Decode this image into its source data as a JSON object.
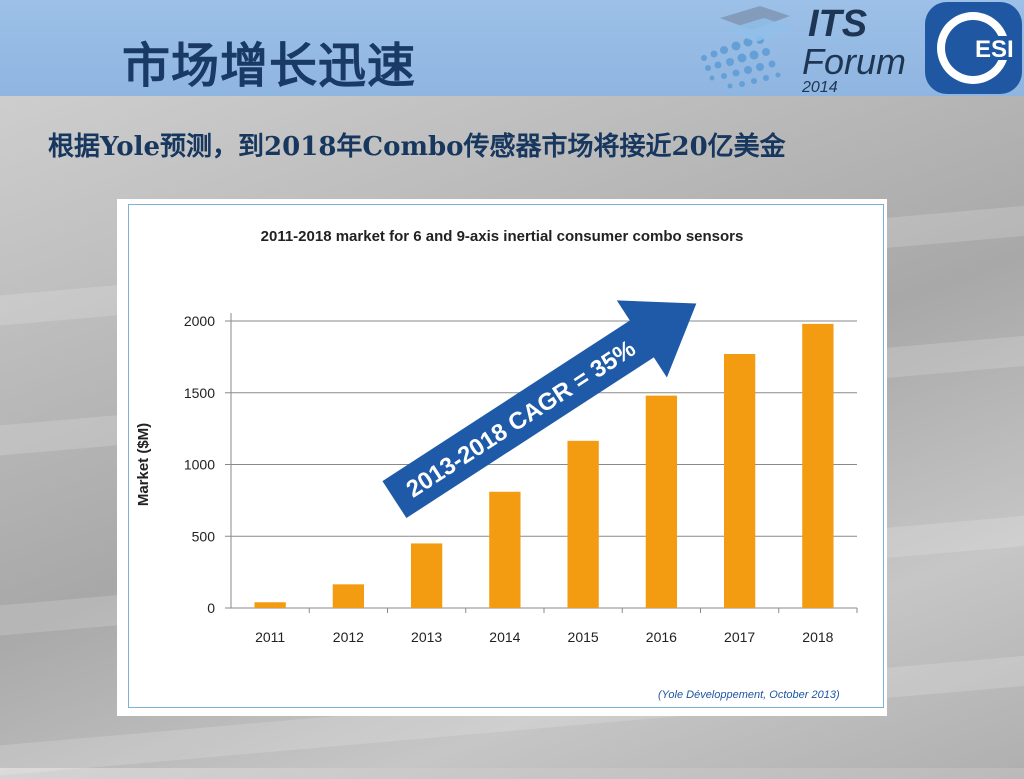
{
  "slide": {
    "title": "市场增长迅速",
    "subtitle": "根据Yole预测，到2018年Combo传感器市场将接近20亿美金"
  },
  "logos": {
    "forum_line1": "ITS",
    "forum_line2": "Forum",
    "forum_year": "2014",
    "esi_text": "ESI",
    "esi_color": "#1f57a3"
  },
  "colors": {
    "header": "#8fb5e1",
    "bar": "#f39c12",
    "arrow": "#1e5aa8",
    "title_text": "#1a3a66"
  },
  "chart_data": {
    "type": "bar",
    "title": "2011-2018 market for 6 and 9-axis inertial consumer combo sensors",
    "ylabel": "Market ($M)",
    "xlabel": "",
    "categories": [
      "2011",
      "2012",
      "2013",
      "2014",
      "2015",
      "2016",
      "2017",
      "2018"
    ],
    "values": [
      40,
      165,
      450,
      810,
      1165,
      1480,
      1770,
      1980
    ],
    "ylim": [
      0,
      2000
    ],
    "yticks": [
      0,
      500,
      1000,
      1500,
      2000
    ],
    "grid": true,
    "annotation": "2013-2018 CAGR = 35%",
    "source": "(Yole Développement, October 2013)"
  }
}
